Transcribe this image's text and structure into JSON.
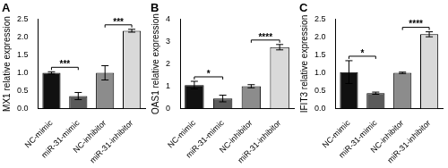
{
  "chart_data": [
    {
      "type": "bar",
      "title": "A",
      "y_label": "MX1 relative expression",
      "categories": [
        "NC-mimic",
        "miR-31-mimic",
        "NC-inhibitor",
        "miR-31-inhibitor"
      ],
      "values": [
        1.0,
        0.35,
        1.0,
        2.18
      ],
      "errors": [
        0.03,
        0.1,
        0.2,
        0.04
      ],
      "colors": [
        "#111111",
        "#5a5a5a",
        "#8c8c8c",
        "#d9d9d9"
      ],
      "ylim": [
        0,
        2.5
      ],
      "yticks": [
        {
          "value": 0,
          "label": "0.0"
        },
        0.5,
        {
          "value": 1,
          "label": "1.0"
        },
        1.5,
        {
          "value": 2,
          "label": "2.0"
        },
        2.5
      ],
      "grid": false,
      "significance": [
        {
          "between": [
            "NC-mimic",
            "miR-31-mimic"
          ],
          "label": "***"
        },
        {
          "between": [
            "NC-inhibitor",
            "miR-31-inhibitor"
          ],
          "label": "***"
        }
      ]
    },
    {
      "type": "bar",
      "title": "B",
      "y_label": "OAS1 relative expression",
      "categories": [
        "NC-mimic",
        "miR-31-mimic",
        "NC-inhibitor",
        "miR-31-inhibitor"
      ],
      "values": [
        1.05,
        0.45,
        1.0,
        2.75
      ],
      "errors": [
        0.17,
        0.15,
        0.07,
        0.12
      ],
      "colors": [
        "#111111",
        "#5a5a5a",
        "#8c8c8c",
        "#d9d9d9"
      ],
      "ylim": [
        0,
        4
      ],
      "yticks": [
        0,
        1,
        2,
        3,
        4
      ],
      "grid": false,
      "significance": [
        {
          "between": [
            "NC-mimic",
            "miR-31-mimic"
          ],
          "label": "*"
        },
        {
          "between": [
            "NC-inhibitor",
            "miR-31-inhibitor"
          ],
          "label": "****"
        }
      ]
    },
    {
      "type": "bar",
      "title": "C",
      "y_label": "IFIT3 relative expression",
      "categories": [
        "NC-mimic",
        "miR-31-mimic",
        "NC-inhibitor",
        "miR-31-inhibitor"
      ],
      "values": [
        1.02,
        0.43,
        1.0,
        2.08
      ],
      "errors": [
        0.32,
        0.03,
        0.02,
        0.07
      ],
      "colors": [
        "#111111",
        "#5a5a5a",
        "#8c8c8c",
        "#d9d9d9"
      ],
      "ylim": [
        0,
        2.5
      ],
      "yticks": [
        {
          "value": 0,
          "label": "0.0"
        },
        0.5,
        {
          "value": 1,
          "label": "1.0"
        },
        1.5,
        {
          "value": 2,
          "label": "2.0"
        },
        2.5
      ],
      "grid": false,
      "significance": [
        {
          "between": [
            "NC-mimic",
            "miR-31-mimic"
          ],
          "label": "*"
        },
        {
          "between": [
            "NC-inhibitor",
            "miR-31-inhibitor"
          ],
          "label": "****"
        }
      ]
    }
  ]
}
